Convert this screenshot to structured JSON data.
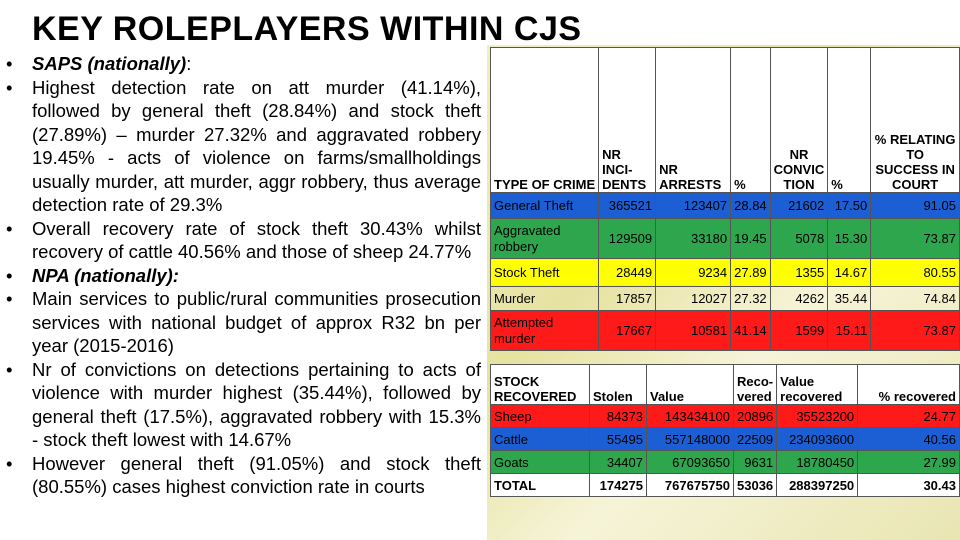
{
  "title": "KEY ROLEPLAYERS WITHIN CJS",
  "bullets": [
    {
      "lead": "SAPS (nationally)",
      "text": ":"
    },
    {
      "text": "Highest detection rate on att murder (41.14%), followed by general theft (28.84%) and stock theft (27.89%) – murder 27.32% and aggravated robbery 19.45% - acts of violence on farms/smallholdings usually murder, att murder, aggr robbery, thus average detection rate of 29.3%"
    },
    {
      "text": "Overall recovery rate of stock theft 30.43% whilst recovery of cattle 40.56% and those of sheep 24.77%"
    },
    {
      "lead": "NPA (nationally):",
      "text": ""
    },
    {
      "text": "Main services to public/rural communities prosecution services with national budget of approx R32 bn per year (2015-2016)"
    },
    {
      "text": "Nr of convictions on detections pertaining to acts of violence with murder highest (35.44%), followed by general theft (17.5%), aggravated robbery with 15.3% - stock theft lowest with 14.67%"
    },
    {
      "text": "However general theft (91.05%) and stock theft (80.55%) cases highest conviction rate in courts"
    }
  ],
  "table1": {
    "headers": [
      "TYPE OF CRIME",
      "NR INCI-DENTS",
      "NR ARRESTS",
      "%",
      "NR CONVIC TION",
      "%",
      "% RELATING TO SUCCESS IN COURT"
    ],
    "rows": [
      [
        "General Theft",
        "365521",
        "123407",
        "28.84",
        "21602",
        "17.50",
        "91.05"
      ],
      [
        "Aggravated robbery",
        "129509",
        "33180",
        "19.45",
        "5078",
        "15.30",
        "73.87"
      ],
      [
        "Stock Theft",
        "28449",
        "9234",
        "27.89",
        "1355",
        "14.67",
        "80.55"
      ],
      [
        "Murder",
        "17857",
        "12027",
        "27.32",
        "4262",
        "35.44",
        "74.84"
      ],
      [
        "Attempted murder",
        "17667",
        "10581",
        "41.14",
        "1599",
        "15.11",
        "73.87"
      ]
    ]
  },
  "table2": {
    "headers": [
      "STOCK RECOVERED",
      "Stolen",
      "Value",
      "Reco-vered",
      "Value recovered",
      "% recovered"
    ],
    "rows": [
      [
        "Sheep",
        "84373",
        "143434100",
        "20896",
        "35523200",
        "24.77"
      ],
      [
        "Cattle",
        "55495",
        "557148000",
        "22509",
        "234093600",
        "40.56"
      ],
      [
        "Goats",
        "34407",
        "67093650",
        "9631",
        "18780450",
        "27.99"
      ],
      [
        "TOTAL",
        "174275",
        "767675750",
        "53036",
        "288397250",
        "30.43"
      ]
    ]
  },
  "colors": {
    "blue": "#1c5fd4",
    "green": "#2ea64d",
    "yellow": "#ffff00",
    "red": "#ff1a1a"
  }
}
